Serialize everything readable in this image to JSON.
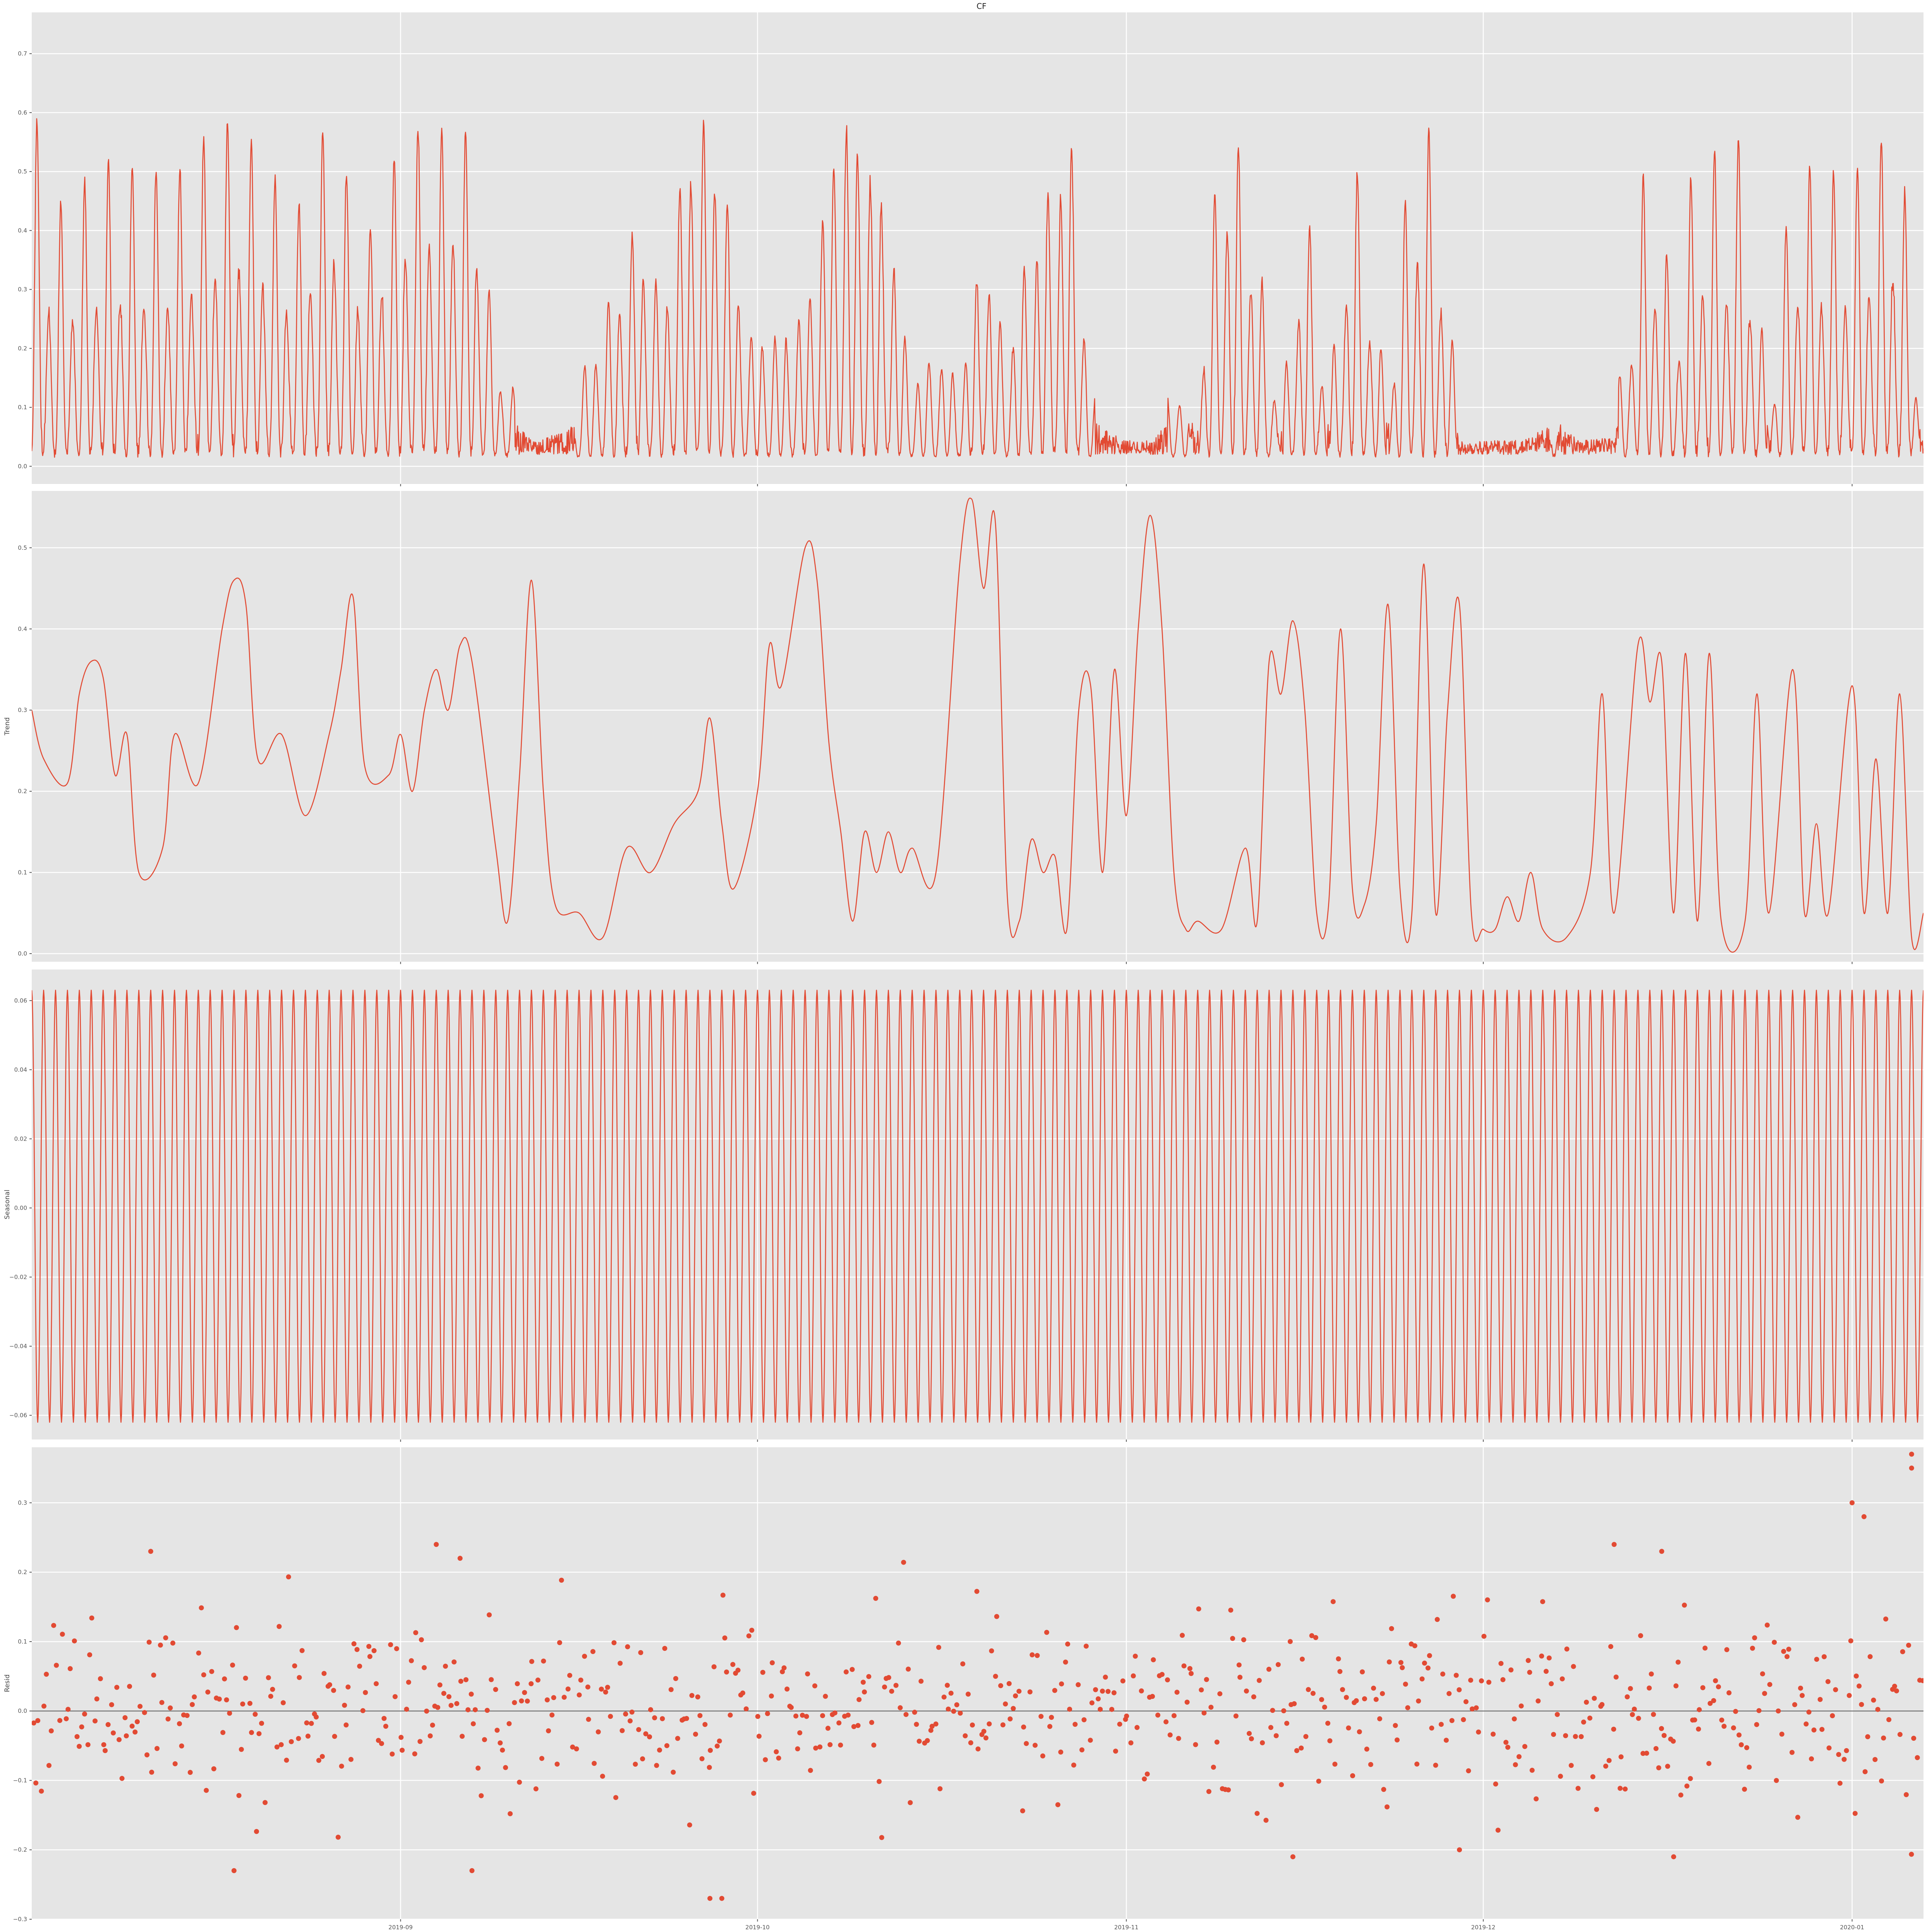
{
  "figure": {
    "title": "CF",
    "accent_color": "#E24A33",
    "panel_background": "#E5E5E5",
    "grid_color": "#FFFFFF",
    "style": "ggplot"
  },
  "chart_data": [
    {
      "type": "line",
      "ylabel": "",
      "title": "CF",
      "ylim": [
        -0.03,
        0.77
      ],
      "yticks": [
        0.0,
        0.1,
        0.2,
        0.3,
        0.4,
        0.5,
        0.6,
        0.7
      ],
      "ytick_labels": [
        "0.0",
        "0.1",
        "0.2",
        "0.3",
        "0.4",
        "0.5",
        "0.6",
        "0.7"
      ],
      "x_range": [
        "2019-08-01",
        "2020-01-07"
      ],
      "x_ticks": [
        "2019-09",
        "2019-10",
        "2019-11",
        "2019-12",
        "2020-01"
      ],
      "grid": true,
      "series": [
        {
          "anchors": [
            [
              "2019-08-01",
              0.6
            ],
            [
              "2019-08-03",
              0.42
            ],
            [
              "2019-08-05",
              0.45
            ],
            [
              "2019-08-07",
              0.5
            ],
            [
              "2019-08-10",
              0.49
            ],
            [
              "2019-08-13",
              0.48
            ],
            [
              "2019-08-16",
              0.56
            ],
            [
              "2019-08-18",
              0.58
            ],
            [
              "2019-08-21",
              0.5
            ],
            [
              "2019-08-23",
              0.41
            ],
            [
              "2019-08-26",
              0.61
            ],
            [
              "2019-08-29",
              0.38
            ],
            [
              "2019-09-01",
              0.56
            ],
            [
              "2019-09-03",
              0.6
            ],
            [
              "2019-09-05",
              0.59
            ],
            [
              "2019-09-07",
              0.6
            ],
            [
              "2019-09-09",
              0.2
            ],
            [
              "2019-09-12",
              0.05
            ],
            [
              "2019-09-15",
              0.08
            ],
            [
              "2019-09-18",
              0.27
            ],
            [
              "2019-09-21",
              0.47
            ],
            [
              "2019-09-23",
              0.3
            ],
            [
              "2019-09-25",
              0.62
            ],
            [
              "2019-09-26",
              0.7
            ],
            [
              "2019-09-28",
              0.6
            ],
            [
              "2019-09-30",
              0.25
            ],
            [
              "2019-10-03",
              0.25
            ],
            [
              "2019-10-05",
              0.3
            ],
            [
              "2019-10-08",
              0.73
            ],
            [
              "2019-10-10",
              0.63
            ],
            [
              "2019-10-12",
              0.5
            ],
            [
              "2019-10-14",
              0.15
            ],
            [
              "2019-10-16",
              0.22
            ],
            [
              "2019-10-18",
              0.15
            ],
            [
              "2019-10-20",
              0.44
            ],
            [
              "2019-10-22",
              0.2
            ],
            [
              "2019-10-24",
              0.45
            ],
            [
              "2019-10-26",
              0.55
            ],
            [
              "2019-10-27",
              0.73
            ],
            [
              "2019-10-29",
              0.13
            ],
            [
              "2019-11-01",
              0.04
            ],
            [
              "2019-11-03",
              0.03
            ],
            [
              "2019-11-05",
              0.15
            ],
            [
              "2019-11-07",
              0.1
            ],
            [
              "2019-11-09",
              0.64
            ],
            [
              "2019-11-11",
              0.53
            ],
            [
              "2019-11-14",
              0.08
            ],
            [
              "2019-11-16",
              0.49
            ],
            [
              "2019-11-18",
              0.1
            ],
            [
              "2019-11-20",
              0.56
            ],
            [
              "2019-11-23",
              0.1
            ],
            [
              "2019-11-25",
              0.58
            ],
            [
              "2019-11-27",
              0.56
            ],
            [
              "2019-11-29",
              0.05
            ],
            [
              "2019-12-02",
              0.03
            ],
            [
              "2019-12-05",
              0.06
            ],
            [
              "2019-12-07",
              0.13
            ],
            [
              "2019-12-09",
              0.05
            ],
            [
              "2019-12-12",
              0.06
            ],
            [
              "2019-12-15",
              0.56
            ],
            [
              "2019-12-17",
              0.25
            ],
            [
              "2019-12-19",
              0.55
            ],
            [
              "2019-12-21",
              0.5
            ],
            [
              "2019-12-23",
              0.55
            ],
            [
              "2019-12-25",
              0.08
            ],
            [
              "2019-12-27",
              0.5
            ],
            [
              "2019-12-30",
              0.48
            ],
            [
              "2020-01-01",
              0.48
            ],
            [
              "2020-01-03",
              0.53
            ],
            [
              "2020-01-05",
              0.57
            ],
            [
              "2020-01-07",
              0.02
            ]
          ]
        }
      ]
    },
    {
      "type": "line",
      "ylabel": "Trend",
      "title": "",
      "ylim": [
        -0.01,
        0.57
      ],
      "yticks": [
        0.0,
        0.1,
        0.2,
        0.3,
        0.4,
        0.5
      ],
      "ytick_labels": [
        "0.0",
        "0.1",
        "0.2",
        "0.3",
        "0.4",
        "0.5"
      ],
      "x_range": [
        "2019-08-01",
        "2020-01-07"
      ],
      "x_ticks": [
        "2019-09",
        "2019-10",
        "2019-11",
        "2019-12",
        "2020-01"
      ],
      "grid": true,
      "series": [
        {
          "points": [
            [
              "2019-08-01",
              0.3
            ],
            [
              "2019-08-02",
              0.24
            ],
            [
              "2019-08-04",
              0.21
            ],
            [
              "2019-08-05",
              0.32
            ],
            [
              "2019-08-06",
              0.36
            ],
            [
              "2019-08-07",
              0.34
            ],
            [
              "2019-08-08",
              0.22
            ],
            [
              "2019-08-09",
              0.27
            ],
            [
              "2019-08-10",
              0.1
            ],
            [
              "2019-08-12",
              0.13
            ],
            [
              "2019-08-13",
              0.27
            ],
            [
              "2019-08-15",
              0.21
            ],
            [
              "2019-08-17",
              0.4
            ],
            [
              "2019-08-18",
              0.46
            ],
            [
              "2019-08-19",
              0.43
            ],
            [
              "2019-08-20",
              0.24
            ],
            [
              "2019-08-22",
              0.27
            ],
            [
              "2019-08-24",
              0.17
            ],
            [
              "2019-08-26",
              0.27
            ],
            [
              "2019-08-27",
              0.35
            ],
            [
              "2019-08-28",
              0.44
            ],
            [
              "2019-08-29",
              0.23
            ],
            [
              "2019-08-31",
              0.22
            ],
            [
              "2019-09-01",
              0.27
            ],
            [
              "2019-09-02",
              0.2
            ],
            [
              "2019-09-03",
              0.3
            ],
            [
              "2019-09-04",
              0.35
            ],
            [
              "2019-09-05",
              0.3
            ],
            [
              "2019-09-06",
              0.38
            ],
            [
              "2019-09-07",
              0.36
            ],
            [
              "2019-09-09",
              0.13
            ],
            [
              "2019-09-10",
              0.04
            ],
            [
              "2019-09-11",
              0.22
            ],
            [
              "2019-09-12",
              0.46
            ],
            [
              "2019-09-13",
              0.2
            ],
            [
              "2019-09-14",
              0.06
            ],
            [
              "2019-09-16",
              0.05
            ],
            [
              "2019-09-18",
              0.02
            ],
            [
              "2019-09-20",
              0.13
            ],
            [
              "2019-09-22",
              0.1
            ],
            [
              "2019-09-24",
              0.16
            ],
            [
              "2019-09-26",
              0.2
            ],
            [
              "2019-09-27",
              0.29
            ],
            [
              "2019-09-28",
              0.16
            ],
            [
              "2019-09-29",
              0.08
            ],
            [
              "2019-10-01",
              0.2
            ],
            [
              "2019-10-02",
              0.38
            ],
            [
              "2019-10-03",
              0.33
            ],
            [
              "2019-10-05",
              0.5
            ],
            [
              "2019-10-06",
              0.46
            ],
            [
              "2019-10-07",
              0.26
            ],
            [
              "2019-10-08",
              0.15
            ],
            [
              "2019-10-09",
              0.04
            ],
            [
              "2019-10-10",
              0.15
            ],
            [
              "2019-10-11",
              0.1
            ],
            [
              "2019-10-12",
              0.15
            ],
            [
              "2019-10-13",
              0.1
            ],
            [
              "2019-10-14",
              0.13
            ],
            [
              "2019-10-16",
              0.1
            ],
            [
              "2019-10-18",
              0.48
            ],
            [
              "2019-10-19",
              0.56
            ],
            [
              "2019-10-20",
              0.45
            ],
            [
              "2019-10-21",
              0.53
            ],
            [
              "2019-10-22",
              0.07
            ],
            [
              "2019-10-23",
              0.04
            ],
            [
              "2019-10-24",
              0.14
            ],
            [
              "2019-10-25",
              0.1
            ],
            [
              "2019-10-26",
              0.12
            ],
            [
              "2019-10-27",
              0.03
            ],
            [
              "2019-10-28",
              0.3
            ],
            [
              "2019-10-29",
              0.33
            ],
            [
              "2019-10-30",
              0.1
            ],
            [
              "2019-10-31",
              0.35
            ],
            [
              "2019-11-01",
              0.17
            ],
            [
              "2019-11-02",
              0.4
            ],
            [
              "2019-11-03",
              0.54
            ],
            [
              "2019-11-04",
              0.4
            ],
            [
              "2019-11-05",
              0.1
            ],
            [
              "2019-11-06",
              0.03
            ],
            [
              "2019-11-07",
              0.04
            ],
            [
              "2019-11-09",
              0.03
            ],
            [
              "2019-11-11",
              0.13
            ],
            [
              "2019-11-12",
              0.04
            ],
            [
              "2019-11-13",
              0.36
            ],
            [
              "2019-11-14",
              0.32
            ],
            [
              "2019-11-15",
              0.41
            ],
            [
              "2019-11-16",
              0.3
            ],
            [
              "2019-11-17",
              0.05
            ],
            [
              "2019-11-18",
              0.06
            ],
            [
              "2019-11-19",
              0.4
            ],
            [
              "2019-11-20",
              0.08
            ],
            [
              "2019-11-21",
              0.06
            ],
            [
              "2019-11-22",
              0.16
            ],
            [
              "2019-11-23",
              0.43
            ],
            [
              "2019-11-24",
              0.08
            ],
            [
              "2019-11-25",
              0.05
            ],
            [
              "2019-11-26",
              0.48
            ],
            [
              "2019-11-27",
              0.05
            ],
            [
              "2019-11-28",
              0.3
            ],
            [
              "2019-11-29",
              0.43
            ],
            [
              "2019-11-30",
              0.05
            ],
            [
              "2019-12-01",
              0.03
            ],
            [
              "2019-12-02",
              0.03
            ],
            [
              "2019-12-03",
              0.07
            ],
            [
              "2019-12-04",
              0.04
            ],
            [
              "2019-12-05",
              0.1
            ],
            [
              "2019-12-06",
              0.03
            ],
            [
              "2019-12-08",
              0.02
            ],
            [
              "2019-12-10",
              0.1
            ],
            [
              "2019-12-11",
              0.32
            ],
            [
              "2019-12-12",
              0.05
            ],
            [
              "2019-12-14",
              0.38
            ],
            [
              "2019-12-15",
              0.31
            ],
            [
              "2019-12-16",
              0.36
            ],
            [
              "2019-12-17",
              0.05
            ],
            [
              "2019-12-18",
              0.37
            ],
            [
              "2019-12-19",
              0.04
            ],
            [
              "2019-12-20",
              0.37
            ],
            [
              "2019-12-21",
              0.04
            ],
            [
              "2019-12-23",
              0.04
            ],
            [
              "2019-12-24",
              0.32
            ],
            [
              "2019-12-25",
              0.05
            ],
            [
              "2019-12-27",
              0.35
            ],
            [
              "2019-12-28",
              0.05
            ],
            [
              "2019-12-29",
              0.16
            ],
            [
              "2019-12-30",
              0.05
            ],
            [
              "2020-01-01",
              0.33
            ],
            [
              "2020-01-02",
              0.05
            ],
            [
              "2020-01-03",
              0.24
            ],
            [
              "2020-01-04",
              0.05
            ],
            [
              "2020-01-05",
              0.32
            ],
            [
              "2020-01-06",
              0.02
            ],
            [
              "2020-01-07",
              0.05
            ]
          ]
        }
      ]
    },
    {
      "type": "line",
      "ylabel": "Seasonal",
      "title": "",
      "ylim": [
        -0.067,
        0.069
      ],
      "yticks": [
        -0.06,
        -0.04,
        -0.02,
        0.0,
        0.02,
        0.04,
        0.06
      ],
      "ytick_labels": [
        "−0.06",
        "−0.04",
        "−0.02",
        "0.00",
        "0.02",
        "0.04",
        "0.06"
      ],
      "x_range": [
        "2019-08-01",
        "2020-01-07"
      ],
      "x_ticks": [
        "2019-09",
        "2019-10",
        "2019-11",
        "2019-12",
        "2020-01"
      ],
      "grid": true,
      "series": [
        {
          "period_days": 1,
          "max": 0.063,
          "min": -0.062
        }
      ]
    },
    {
      "type": "scatter",
      "ylabel": "Resid",
      "title": "",
      "ylim": [
        -0.3,
        0.38
      ],
      "yticks": [
        -0.3,
        -0.2,
        -0.1,
        0.0,
        0.1,
        0.2,
        0.3
      ],
      "ytick_labels": [
        "−0.3",
        "−0.2",
        "−0.1",
        "0.0",
        "0.1",
        "0.2",
        "0.3"
      ],
      "x_range": [
        "2019-08-01",
        "2020-01-07"
      ],
      "x_ticks": [
        "2019-09",
        "2019-10",
        "2019-11",
        "2019-12",
        "2020-01"
      ],
      "x_tick_labels": [
        "2019-09",
        "2019-10",
        "2019-11",
        "2019-12",
        "2020-01"
      ],
      "grid": true,
      "zero_line": 0.0,
      "series": [
        {
          "n_points": 700,
          "typical_spread": 0.08,
          "outliers": [
            [
              "2020-01-06",
              0.37
            ],
            [
              "2020-01-06",
              0.35
            ],
            [
              "2020-01-01",
              0.3
            ],
            [
              "2020-01-02",
              0.28
            ],
            [
              "2019-12-12",
              0.24
            ],
            [
              "2019-12-16",
              0.23
            ],
            [
              "2019-09-04",
              0.24
            ],
            [
              "2019-09-06",
              0.22
            ],
            [
              "2019-08-11",
              0.23
            ],
            [
              "2019-09-27",
              -0.27
            ],
            [
              "2019-09-28",
              -0.27
            ],
            [
              "2019-08-18",
              -0.23
            ],
            [
              "2019-09-07",
              -0.23
            ],
            [
              "2019-12-17",
              -0.21
            ],
            [
              "2019-11-15",
              -0.21
            ],
            [
              "2019-11-29",
              -0.2
            ]
          ]
        }
      ]
    }
  ]
}
